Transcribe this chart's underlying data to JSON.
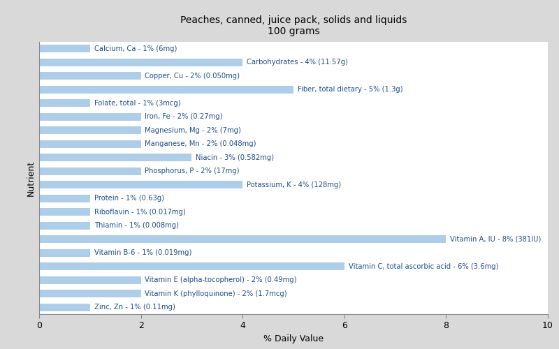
{
  "title": "Peaches, canned, juice pack, solids and liquids\n100 grams",
  "xlabel": "% Daily Value",
  "ylabel": "Nutrient",
  "xlim": [
    0,
    10
  ],
  "bar_color": "#aecde8",
  "background_color": "#d9d9d9",
  "plot_background": "#ffffff",
  "nutrients": [
    {
      "label": "Calcium, Ca - 1% (6mg)",
      "value": 1
    },
    {
      "label": "Carbohydrates - 4% (11.57g)",
      "value": 4
    },
    {
      "label": "Copper, Cu - 2% (0.050mg)",
      "value": 2
    },
    {
      "label": "Fiber, total dietary - 5% (1.3g)",
      "value": 5
    },
    {
      "label": "Folate, total - 1% (3mcg)",
      "value": 1
    },
    {
      "label": "Iron, Fe - 2% (0.27mg)",
      "value": 2
    },
    {
      "label": "Magnesium, Mg - 2% (7mg)",
      "value": 2
    },
    {
      "label": "Manganese, Mn - 2% (0.048mg)",
      "value": 2
    },
    {
      "label": "Niacin - 3% (0.582mg)",
      "value": 3
    },
    {
      "label": "Phosphorus, P - 2% (17mg)",
      "value": 2
    },
    {
      "label": "Potassium, K - 4% (128mg)",
      "value": 4
    },
    {
      "label": "Protein - 1% (0.63g)",
      "value": 1
    },
    {
      "label": "Riboflavin - 1% (0.017mg)",
      "value": 1
    },
    {
      "label": "Thiamin - 1% (0.008mg)",
      "value": 1
    },
    {
      "label": "Vitamin A, IU - 8% (381IU)",
      "value": 8
    },
    {
      "label": "Vitamin B-6 - 1% (0.019mg)",
      "value": 1
    },
    {
      "label": "Vitamin C, total ascorbic acid - 6% (3.6mg)",
      "value": 6
    },
    {
      "label": "Vitamin E (alpha-tocopherol) - 2% (0.49mg)",
      "value": 2
    },
    {
      "label": "Vitamin K (phylloquinone) - 2% (1.7mcg)",
      "value": 2
    },
    {
      "label": "Zinc, Zn - 1% (0.11mg)",
      "value": 1
    }
  ],
  "text_color": "#1f4e8c",
  "title_fontsize": 10,
  "axis_label_fontsize": 9,
  "bar_label_fontsize": 7.2
}
